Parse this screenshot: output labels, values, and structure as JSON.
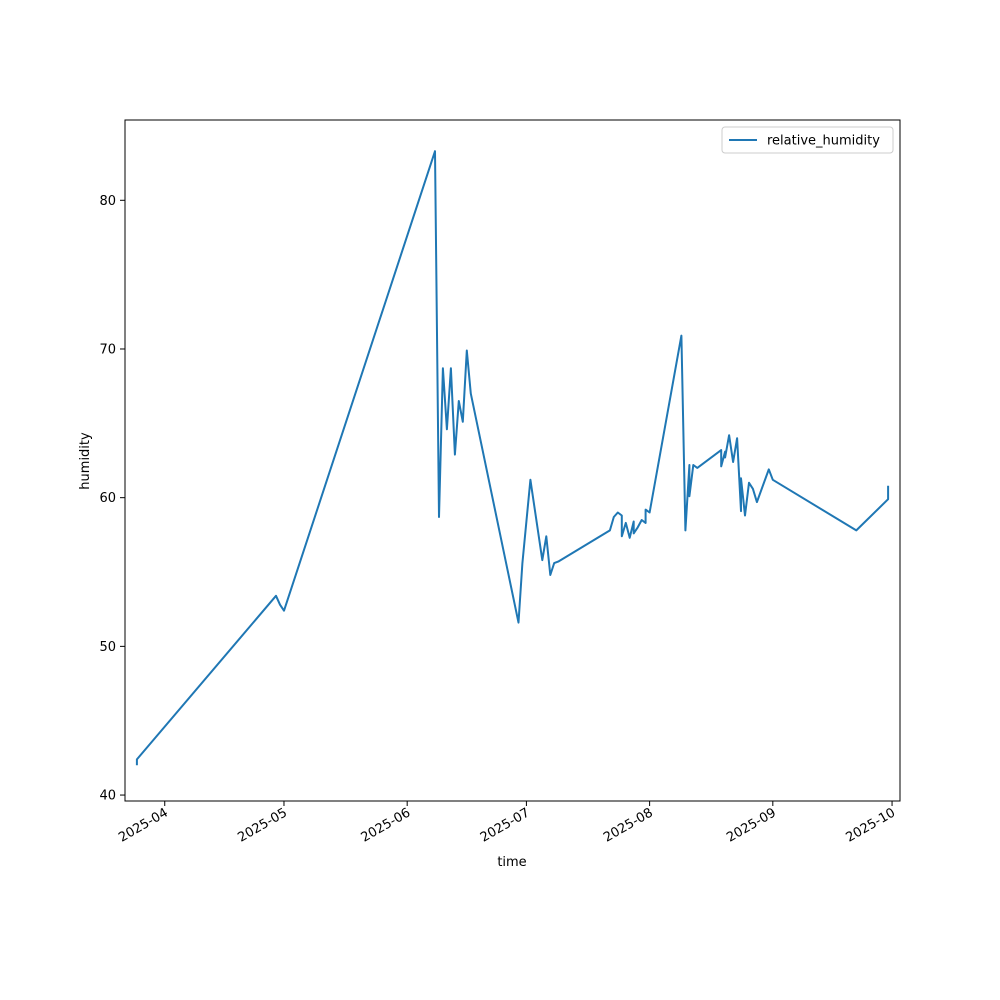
{
  "chart_data": {
    "type": "line",
    "title": "",
    "xlabel": "time",
    "ylabel": "humidity",
    "x_tick_labels": [
      "2025-04",
      "2025-05",
      "2025-06",
      "2025-07",
      "2025-08",
      "2025-09",
      "2025-10"
    ],
    "y_tick_labels": [
      "40",
      "50",
      "60",
      "70",
      "80"
    ],
    "ylim": [
      39.6,
      85.4
    ],
    "xlim": [
      "2025-03-22",
      "2025-10-03"
    ],
    "grid": false,
    "legend": "top-right",
    "series": [
      {
        "name": "relative_humidity",
        "color": "#1f77b4",
        "x": [
          "2025-03-25",
          "2025-03-25",
          "2025-04-29",
          "2025-04-30",
          "2025-05-01",
          "2025-06-08",
          "2025-06-09",
          "2025-06-10",
          "2025-06-11",
          "2025-06-12",
          "2025-06-13",
          "2025-06-14",
          "2025-06-15",
          "2025-06-16",
          "2025-06-17",
          "2025-06-29",
          "2025-06-30",
          "2025-07-02",
          "2025-07-05",
          "2025-07-06",
          "2025-07-07",
          "2025-07-08",
          "2025-07-09",
          "2025-07-22",
          "2025-07-23",
          "2025-07-24",
          "2025-07-25",
          "2025-07-25",
          "2025-07-26",
          "2025-07-27",
          "2025-07-28",
          "2025-07-28",
          "2025-07-29",
          "2025-07-30",
          "2025-07-31",
          "2025-07-31",
          "2025-08-01",
          "2025-08-09",
          "2025-08-10",
          "2025-08-11",
          "2025-08-11",
          "2025-08-12",
          "2025-08-13",
          "2025-08-19",
          "2025-08-19",
          "2025-08-20",
          "2025-08-20",
          "2025-08-21",
          "2025-08-22",
          "2025-08-23",
          "2025-08-24",
          "2025-08-24",
          "2025-08-25",
          "2025-08-26",
          "2025-08-27",
          "2025-08-28",
          "2025-08-31",
          "2025-09-01",
          "2025-09-22",
          "2025-09-30",
          "2025-09-30"
        ],
        "y": [
          42.0,
          42.4,
          53.4,
          52.8,
          52.4,
          83.3,
          58.7,
          68.7,
          64.6,
          68.7,
          62.9,
          66.5,
          65.1,
          69.9,
          67.0,
          51.6,
          55.6,
          61.2,
          55.8,
          57.4,
          54.8,
          55.6,
          55.7,
          57.8,
          58.7,
          59.0,
          58.8,
          57.4,
          58.3,
          57.3,
          58.4,
          57.6,
          58.0,
          58.5,
          58.3,
          59.2,
          59.0,
          70.9,
          57.8,
          62.2,
          60.1,
          62.2,
          62.0,
          63.2,
          62.1,
          63.1,
          62.7,
          64.2,
          62.4,
          64.0,
          59.1,
          61.3,
          58.8,
          61.0,
          60.6,
          59.7,
          61.9,
          61.2,
          57.8,
          59.9,
          60.8
        ]
      }
    ]
  }
}
